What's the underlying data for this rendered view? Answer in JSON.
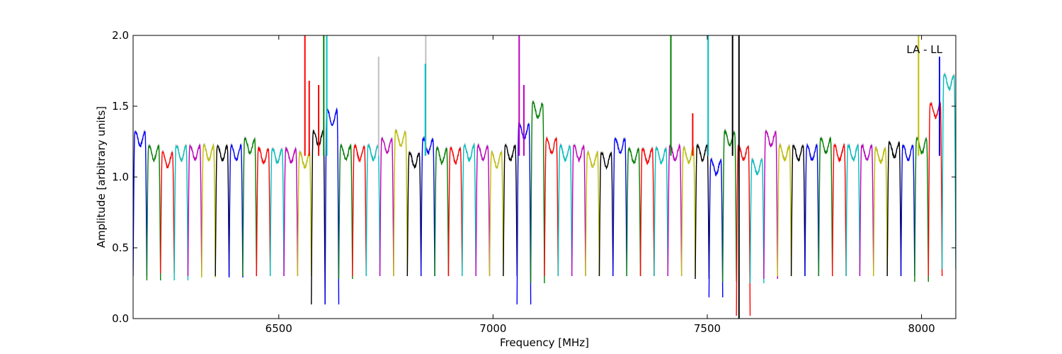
{
  "chart_data": {
    "type": "line",
    "title": "",
    "xlabel": "Frequency [MHz]",
    "ylabel": "Amplitude [arbitrary units]",
    "xlim": [
      6160,
      8080
    ],
    "ylim": [
      0.0,
      2.0
    ],
    "xticks": [
      6500,
      7000,
      7500,
      8000
    ],
    "xtick_labels": [
      "6500",
      "7000",
      "7500",
      "8000"
    ],
    "yticks": [
      0.0,
      0.5,
      1.0,
      1.5,
      2.0
    ],
    "ytick_labels": [
      "0.0",
      "0.5",
      "1.0",
      "1.5",
      "2.0"
    ],
    "grid": false,
    "annotation": "LA - LL",
    "colors": [
      "#0000ff",
      "#008000",
      "#ff0000",
      "#00bfbf",
      "#bf00bf",
      "#bfbf00",
      "#000000"
    ],
    "background_color": "#c0c0c0",
    "channel_width_mhz": 32,
    "channel_starts_mhz": [
      6160,
      6192,
      6224,
      6256,
      6288,
      6320,
      6352,
      6384,
      6416,
      6448,
      6480,
      6512,
      6544,
      6576,
      6608,
      6640,
      6672,
      6704,
      6736,
      6768,
      6800,
      6832,
      6864,
      6896,
      6928,
      6960,
      6992,
      7024,
      7056,
      7088,
      7120,
      7152,
      7184,
      7216,
      7248,
      7280,
      7312,
      7344,
      7376,
      7408,
      7440,
      7472,
      7504,
      7536,
      7568,
      7600,
      7632,
      7664,
      7696,
      7728,
      7760,
      7792,
      7824,
      7856,
      7888,
      7920,
      7952,
      7984,
      8016,
      8048
    ],
    "channel_plateau": [
      1.3,
      1.2,
      1.15,
      1.2,
      1.2,
      1.2,
      1.2,
      1.2,
      1.25,
      1.18,
      1.18,
      1.18,
      1.15,
      1.3,
      1.45,
      1.2,
      1.2,
      1.2,
      1.25,
      1.3,
      1.15,
      1.25,
      1.18,
      1.18,
      1.2,
      1.2,
      1.15,
      1.2,
      1.35,
      1.5,
      1.25,
      1.2,
      1.2,
      1.15,
      1.15,
      1.25,
      1.18,
      1.18,
      1.18,
      1.2,
      1.18,
      1.2,
      1.1,
      1.3,
      1.2,
      1.1,
      1.3,
      1.2,
      1.2,
      1.2,
      1.25,
      1.2,
      1.2,
      1.2,
      1.18,
      1.22,
      1.2,
      1.25,
      1.5,
      1.7
    ],
    "channel_min": [
      0.3,
      0.27,
      0.32,
      0.27,
      0.3,
      0.29,
      0.3,
      0.29,
      0.3,
      0.3,
      0.3,
      0.3,
      0.3,
      0.1,
      0.1,
      0.28,
      0.3,
      0.3,
      0.3,
      0.3,
      0.3,
      0.3,
      0.3,
      0.3,
      0.3,
      0.3,
      0.3,
      0.3,
      0.1,
      0.25,
      0.3,
      0.3,
      0.3,
      0.3,
      0.3,
      0.3,
      0.3,
      0.3,
      0.3,
      0.3,
      0.3,
      0.28,
      0.15,
      0.26,
      0.02,
      0.25,
      0.28,
      0.3,
      0.3,
      0.3,
      0.3,
      0.3,
      0.3,
      0.3,
      0.3,
      0.3,
      0.3,
      0.26,
      0.3,
      0.35
    ],
    "spikes": [
      {
        "x": 6561,
        "y": 2.0,
        "color": "#ff0000"
      },
      {
        "x": 6571,
        "y": 1.68,
        "color": "#ff0000"
      },
      {
        "x": 6593,
        "y": 1.65,
        "color": "#ff0000"
      },
      {
        "x": 6605,
        "y": 2.0,
        "color": "#008000"
      },
      {
        "x": 6612,
        "y": 2.0,
        "color": "#00bfbf"
      },
      {
        "x": 6733,
        "y": 1.85,
        "color": "#c0c0c0"
      },
      {
        "x": 6843,
        "y": 2.0,
        "color": "#c0c0c0"
      },
      {
        "x": 6842,
        "y": 1.8,
        "color": "#00bfbf"
      },
      {
        "x": 7061,
        "y": 2.0,
        "color": "#bf00bf"
      },
      {
        "x": 7072,
        "y": 1.65,
        "color": "#bf00bf"
      },
      {
        "x": 7415,
        "y": 2.0,
        "color": "#008000"
      },
      {
        "x": 7466,
        "y": 1.45,
        "color": "#ff0000"
      },
      {
        "x": 7502,
        "y": 2.0,
        "color": "#00bfbf"
      },
      {
        "x": 7559,
        "y": 2.0,
        "color": "#000000"
      },
      {
        "x": 7574,
        "y": 2.0,
        "color": "#000000"
      },
      {
        "x": 7574,
        "y": 0.0,
        "color": "#000000"
      },
      {
        "x": 7993,
        "y": 2.0,
        "color": "#bfbf00"
      },
      {
        "x": 8042,
        "y": 1.85,
        "color": "#0000ff"
      }
    ]
  }
}
